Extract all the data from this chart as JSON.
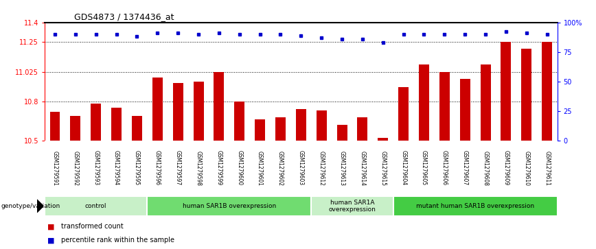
{
  "title": "GDS4873 / 1374436_at",
  "samples": [
    "GSM1279591",
    "GSM1279592",
    "GSM1279593",
    "GSM1279594",
    "GSM1279595",
    "GSM1279596",
    "GSM1279597",
    "GSM1279598",
    "GSM1279599",
    "GSM1279600",
    "GSM1279601",
    "GSM1279602",
    "GSM1279603",
    "GSM1279612",
    "GSM1279613",
    "GSM1279614",
    "GSM1279615",
    "GSM1279604",
    "GSM1279605",
    "GSM1279606",
    "GSM1279607",
    "GSM1279608",
    "GSM1279609",
    "GSM1279610",
    "GSM1279611"
  ],
  "bar_values": [
    10.72,
    10.69,
    10.78,
    10.75,
    10.69,
    10.98,
    10.94,
    10.95,
    11.02,
    10.8,
    10.66,
    10.68,
    10.74,
    10.73,
    10.62,
    10.68,
    10.52,
    10.91,
    11.08,
    11.025,
    10.97,
    11.08,
    11.25,
    11.2,
    11.25
  ],
  "percentile_values": [
    90,
    90,
    90,
    90,
    88,
    91,
    91,
    90,
    91,
    90,
    90,
    90,
    89,
    87,
    86,
    86,
    83,
    90,
    90,
    90,
    90,
    90,
    92,
    91,
    90
  ],
  "bar_color": "#CC0000",
  "dot_color": "#0000CC",
  "ylim_left": [
    10.5,
    11.4
  ],
  "ylim_right": [
    0,
    100
  ],
  "yticks_left": [
    10.5,
    10.8,
    11.025,
    11.25,
    11.4
  ],
  "ytick_labels_left": [
    "10.5",
    "10.8",
    "11.025",
    "11.25",
    "11.4"
  ],
  "yticks_right": [
    0,
    25,
    50,
    75,
    100
  ],
  "ytick_labels_right": [
    "0",
    "25",
    "50",
    "75",
    "100%"
  ],
  "hlines": [
    10.8,
    11.025,
    11.25
  ],
  "groups": [
    {
      "label": "control",
      "start": 0,
      "end": 5,
      "color": "#c8f0c8"
    },
    {
      "label": "human SAR1B overexpression",
      "start": 5,
      "end": 13,
      "color": "#70dc70"
    },
    {
      "label": "human SAR1A\noverexpression",
      "start": 13,
      "end": 17,
      "color": "#c8f0c8"
    },
    {
      "label": "mutant human SAR1B overexpression",
      "start": 17,
      "end": 25,
      "color": "#44cc44"
    }
  ],
  "genotype_label": "genotype/variation",
  "legend_items": [
    {
      "color": "#CC0000",
      "label": "transformed count"
    },
    {
      "color": "#0000CC",
      "label": "percentile rank within the sample"
    }
  ]
}
